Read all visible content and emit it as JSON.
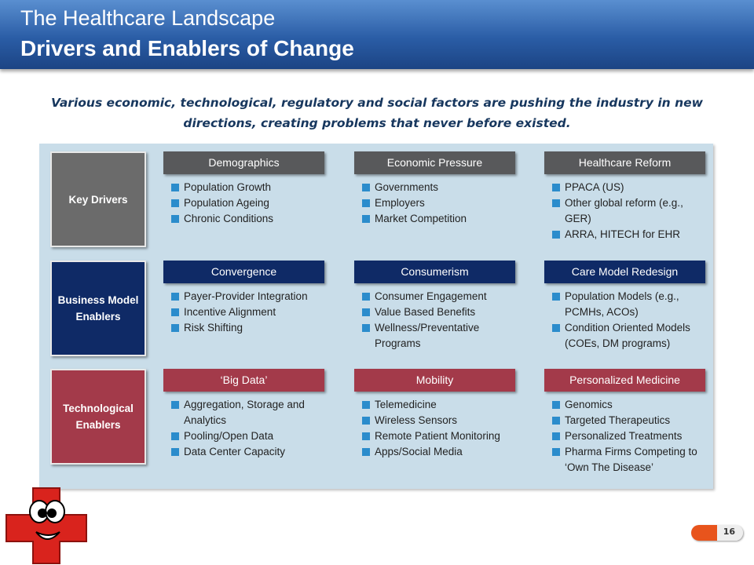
{
  "header": {
    "title": "The Healthcare Landscape",
    "subtitle": "Drivers and Enablers of Change"
  },
  "intro": "Various economic, technological, regulatory and social factors are pushing  the industry in new directions, creating problems that never before existed.",
  "rows": [
    {
      "label": "Key Drivers",
      "columns": [
        {
          "heading": "Demographics",
          "items": [
            "Population Growth",
            "Population Ageing",
            "Chronic Conditions"
          ]
        },
        {
          "heading": "Economic Pressure",
          "items": [
            "Governments",
            "Employers",
            "Market Competition"
          ]
        },
        {
          "heading": "Healthcare Reform",
          "items": [
            "PPACA (US)",
            "Other global reform (e.g., GER)",
            "ARRA,  HITECH for EHR"
          ]
        }
      ]
    },
    {
      "label": "Business Model Enablers",
      "columns": [
        {
          "heading": "Convergence",
          "items": [
            "Payer-Provider Integration",
            "Incentive Alignment",
            "Risk Shifting"
          ]
        },
        {
          "heading": "Consumerism",
          "items": [
            "Consumer Engagement",
            "Value Based Benefits",
            "Wellness/Preventative Programs"
          ]
        },
        {
          "heading": "Care Model Redesign",
          "items": [
            "Population Models (e.g., PCMHs, ACOs)",
            "Condition Oriented Models (COEs, DM programs)"
          ]
        }
      ]
    },
    {
      "label": "Technological Enablers",
      "columns": [
        {
          "heading": "‘Big Data’",
          "items": [
            "Aggregation, Storage and Analytics",
            "Pooling/Open Data",
            "Data Center Capacity"
          ]
        },
        {
          "heading": "Mobility",
          "items": [
            "Telemedicine",
            "Wireless Sensors",
            "Remote Patient Monitoring",
            "Apps/Social Media"
          ]
        },
        {
          "heading": "Personalized Medicine",
          "items": [
            "Genomics",
            "Targeted Therapeutics",
            "Personalized Treatments",
            "Pharma Firms Competing to ‘Own The Disease’"
          ]
        }
      ]
    }
  ],
  "page_number": "16"
}
